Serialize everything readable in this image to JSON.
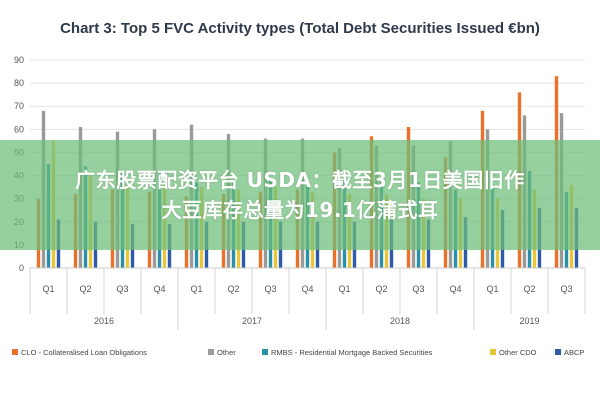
{
  "chart_data": {
    "type": "bar",
    "title": "Chart 3: Top 5 FVC Activity types (Total Debt Securities Issued €bn)",
    "ylim": [
      0,
      90
    ],
    "yticks": [
      0,
      10,
      20,
      30,
      40,
      50,
      60,
      70,
      80,
      90
    ],
    "grid": true,
    "categories": [
      "Q1",
      "Q2",
      "Q3",
      "Q4",
      "Q1",
      "Q2",
      "Q3",
      "Q4",
      "Q1",
      "Q2",
      "Q3",
      "Q4",
      "Q1",
      "Q2",
      "Q3"
    ],
    "year_groups": [
      {
        "label": "2016",
        "count": 4
      },
      {
        "label": "2017",
        "count": 4
      },
      {
        "label": "2018",
        "count": 4
      },
      {
        "label": "2019",
        "count": 3
      }
    ],
    "legend_position": "bottom",
    "series": [
      {
        "name": "CLO - Collateralised Loan Obligations",
        "color": "#e8722c",
        "values": [
          30,
          32,
          34,
          33,
          31,
          32,
          33,
          34,
          50,
          57,
          61,
          48,
          68,
          76,
          83
        ]
      },
      {
        "name": "Other",
        "color": "#9a9a9a",
        "values": [
          68,
          61,
          59,
          60,
          62,
          58,
          56,
          56,
          52,
          53,
          53,
          55,
          60,
          66,
          67
        ]
      },
      {
        "name": "RMBS - Residential Mortgage Backed Securities",
        "color": "#2a8fa8",
        "values": [
          45,
          44,
          41,
          41,
          37,
          38,
          38,
          37,
          37,
          38,
          37,
          34,
          36,
          42,
          33
        ]
      },
      {
        "name": "Other CDO",
        "color": "#e8c63a",
        "values": [
          55,
          40,
          36,
          36,
          35,
          34,
          35,
          33,
          32,
          32,
          30,
          30,
          30,
          34,
          36
        ]
      },
      {
        "name": "ABCP",
        "color": "#2f5aa8",
        "values": [
          21,
          20,
          19,
          19,
          20,
          20,
          20,
          20,
          20,
          21,
          21,
          22,
          25,
          26,
          26
        ]
      }
    ]
  },
  "banner": {
    "line1": "广东股票配资平台 USDA：截至3月1日美国旧作",
    "line2": "大豆库存总量为19.1亿蒲式耳"
  }
}
